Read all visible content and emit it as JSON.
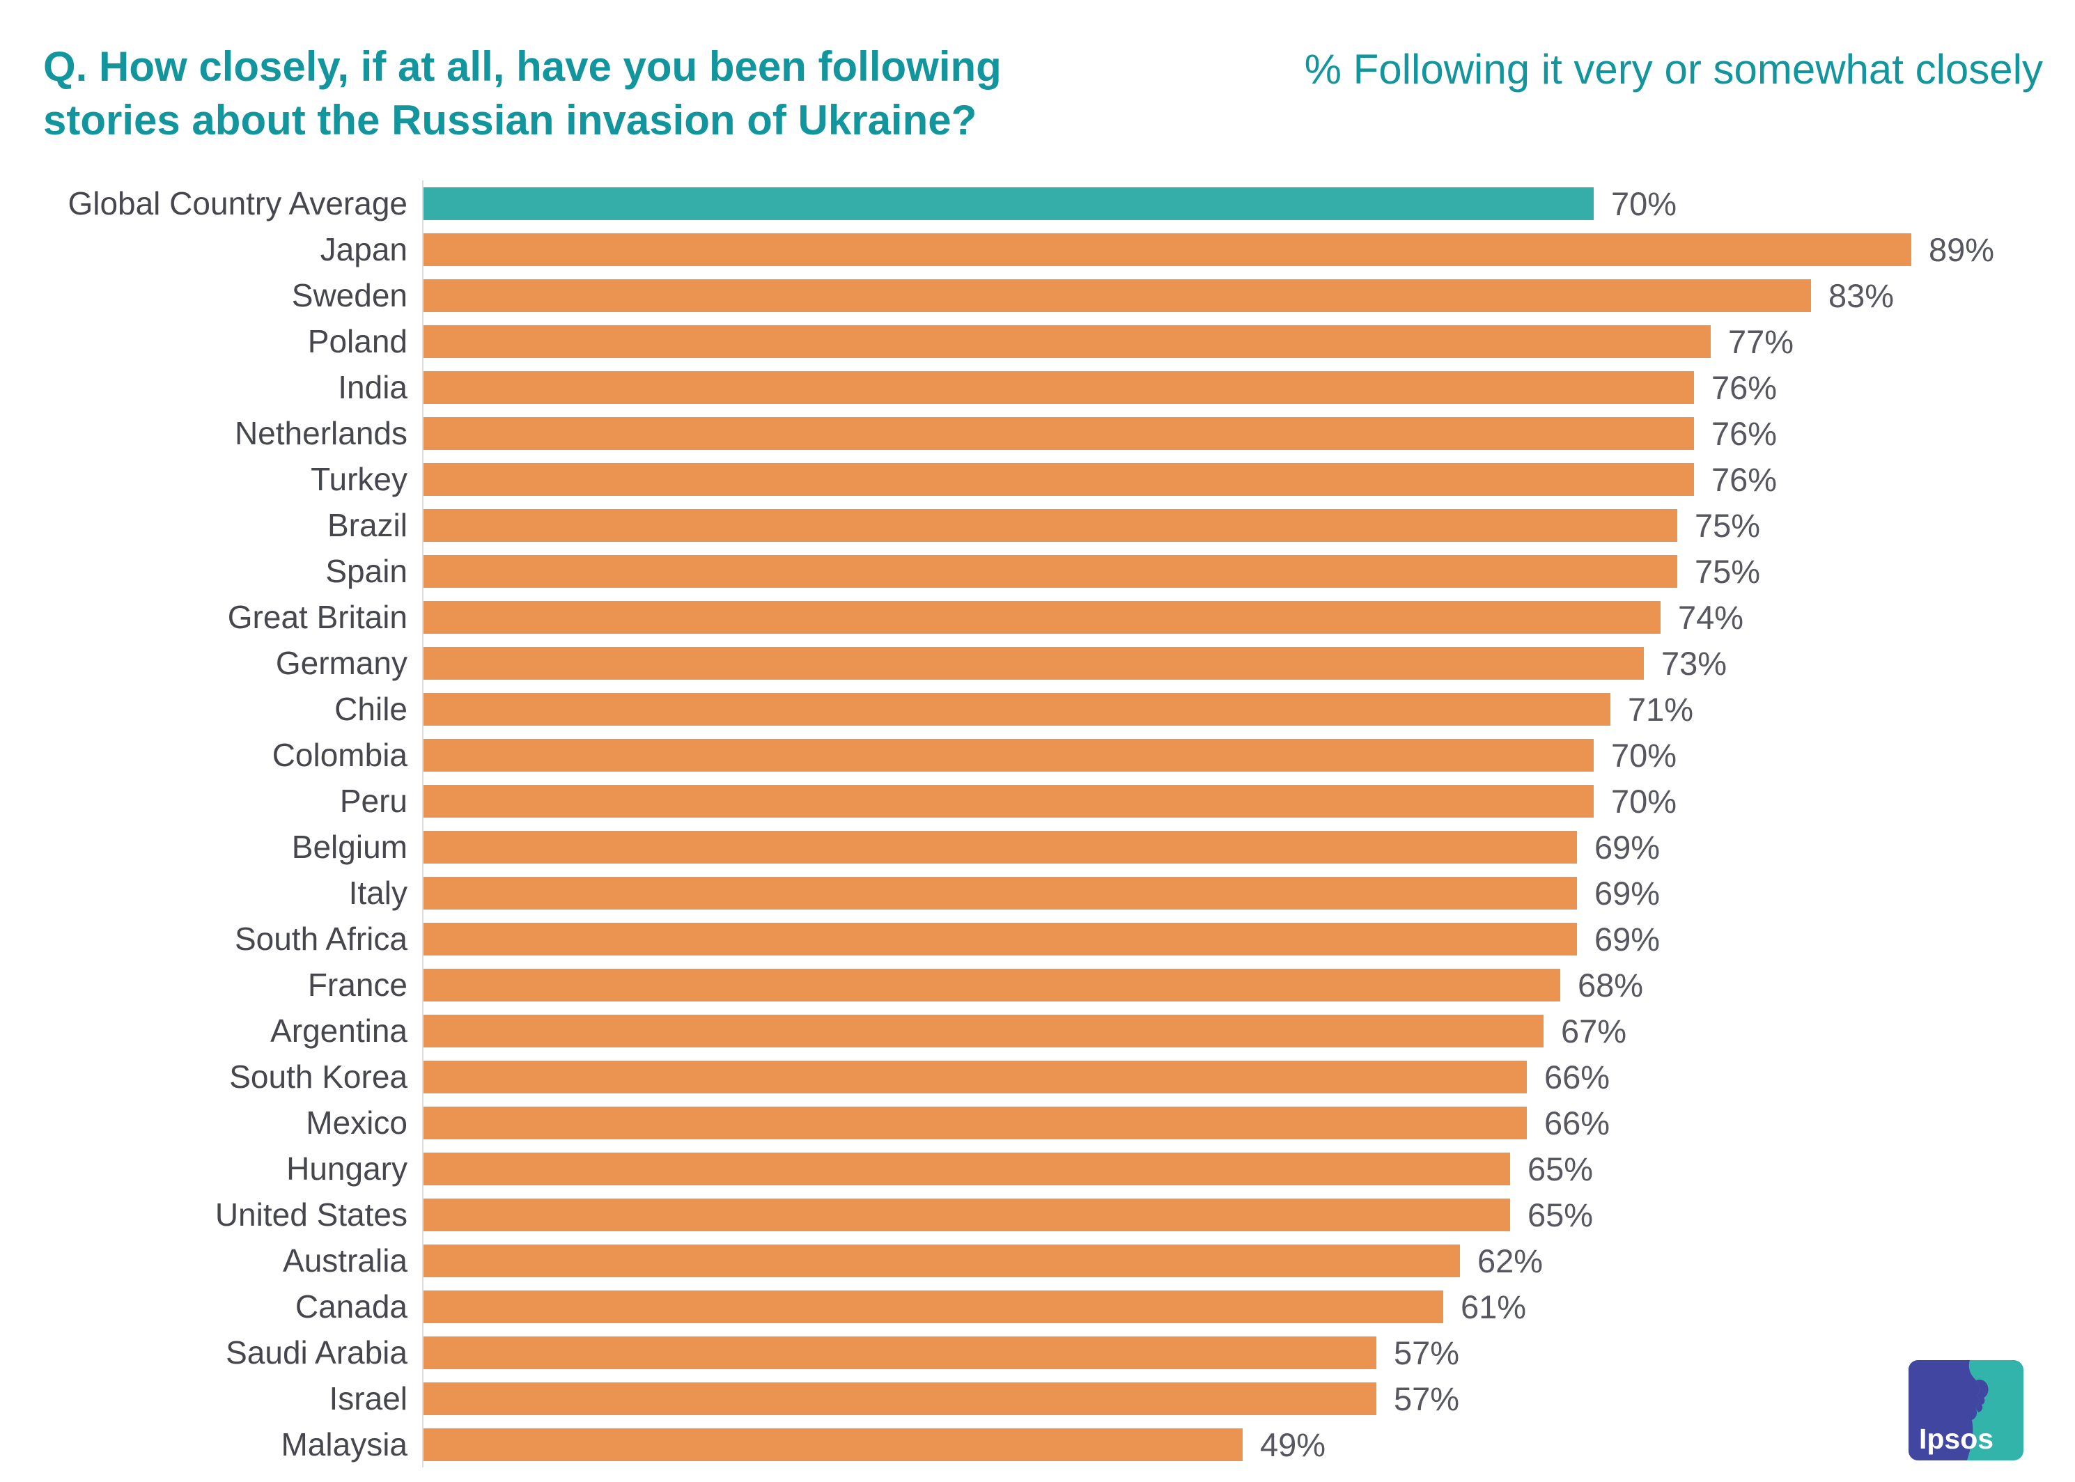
{
  "header": {
    "title_line1": "Q. How closely, if at all, have you been following",
    "title_line2": "stories about the Russian invasion of Ukraine?",
    "subtitle_right": "% Following it very or somewhat closely"
  },
  "chart_data": {
    "type": "bar",
    "orientation": "horizontal",
    "title": "Q. How closely, if at all, have you been following stories about the Russian invasion of Ukraine?",
    "series_label": "% Following it very or somewhat closely",
    "unit": "%",
    "xlim": [
      0,
      100
    ],
    "grid": false,
    "value_labels": true,
    "highlight_category": "Global Country Average",
    "categories": [
      "Global Country Average",
      "Japan",
      "Sweden",
      "Poland",
      "India",
      "Netherlands",
      "Turkey",
      "Brazil",
      "Spain",
      "Great Britain",
      "Germany",
      "Chile",
      "Colombia",
      "Peru",
      "Belgium",
      "Italy",
      "South Africa",
      "France",
      "Argentina",
      "South Korea",
      "Mexico",
      "Hungary",
      "United States",
      "Australia",
      "Canada",
      "Saudi Arabia",
      "Israel",
      "Malaysia"
    ],
    "values": [
      70,
      89,
      83,
      77,
      76,
      76,
      76,
      75,
      75,
      74,
      73,
      71,
      70,
      70,
      69,
      69,
      69,
      68,
      67,
      66,
      66,
      65,
      65,
      62,
      61,
      57,
      57,
      49
    ],
    "colors": {
      "default_bar": "#EB9351",
      "highlight_bar": "#35AEA9",
      "title_text": "#13959D",
      "category_text": "#46474D",
      "value_text": "#56575F",
      "axis_line": "#DCDCDC"
    }
  },
  "logo": {
    "text": "Ipsos",
    "colors": {
      "left_panel": "#4147A1",
      "right_panel": "#33B4AB",
      "text": "#FFFFFF"
    }
  }
}
